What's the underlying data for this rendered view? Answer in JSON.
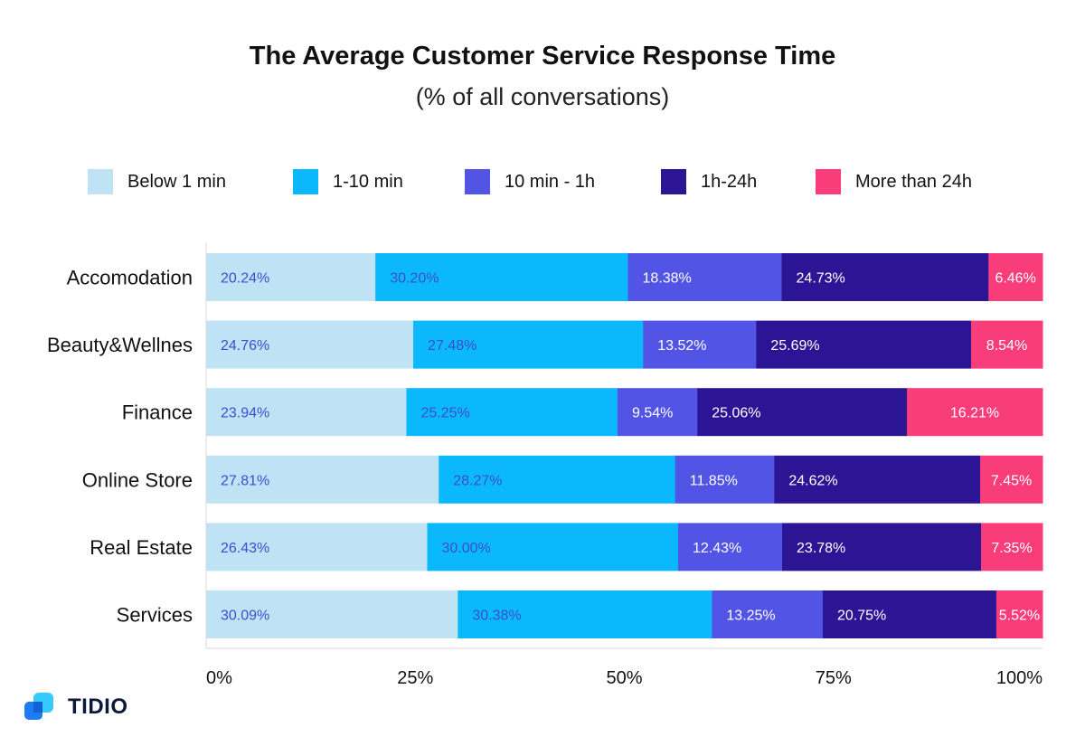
{
  "title": "The Average Customer Service Response Time",
  "subtitle": "(% of all conversations)",
  "brand": {
    "name": "TIDIO",
    "icon": "tidio-logo-icon"
  },
  "chart_data": {
    "type": "bar",
    "orientation": "horizontal",
    "stacked": true,
    "title": "The Average Customer Service Response Time",
    "subtitle": "(% of all conversations)",
    "categories": [
      "Accomodation",
      "Beauty&Wellnes",
      "Finance",
      "Online Store",
      "Real Estate",
      "Services"
    ],
    "series": [
      {
        "name": "Below 1 min",
        "color": "#bfe3f4",
        "label_color": "#3a4fd0",
        "values": [
          20.24,
          24.76,
          23.94,
          27.81,
          26.43,
          30.09
        ],
        "labels": [
          "20.24%",
          "24.76%",
          "23.94%",
          "27.81%",
          "26.43%",
          "30.09%"
        ]
      },
      {
        "name": "1-10 min",
        "color": "#0ab8fb",
        "label_color": "#3a4fd0",
        "values": [
          30.2,
          27.48,
          25.25,
          28.27,
          30.0,
          30.38
        ],
        "labels": [
          "30.20%",
          "27.48%",
          "25.25%",
          "28.27%",
          "30.00%",
          "30.38%"
        ]
      },
      {
        "name": "10 min - 1h",
        "color": "#5254e6",
        "label_color": "#ffffff",
        "values": [
          18.38,
          13.52,
          9.54,
          11.85,
          12.43,
          13.25
        ],
        "labels": [
          "18.38%",
          "13.52%",
          "9.54%",
          "11.85%",
          "12.43%",
          "13.25%"
        ]
      },
      {
        "name": "1h-24h",
        "color": "#2c1594",
        "label_color": "#ffffff",
        "values": [
          24.73,
          25.69,
          25.06,
          24.62,
          23.78,
          20.75
        ],
        "labels": [
          "24.73%",
          "25.69%",
          "25.06%",
          "24.62%",
          "23.78%",
          "20.75%"
        ]
      },
      {
        "name": "More than 24h",
        "color": "#f93c7a",
        "label_color": "#ffffff",
        "values": [
          6.46,
          8.54,
          16.21,
          7.45,
          7.35,
          5.52
        ],
        "labels": [
          "6.46%",
          "8.54%",
          "16.21%",
          "7.45%",
          "7.35%",
          "5.52%"
        ]
      }
    ],
    "xlim": [
      0,
      100
    ],
    "xticks": [
      "0%",
      "25%",
      "50%",
      "75%",
      "100%"
    ],
    "xlabel": "",
    "ylabel": "",
    "grid": false,
    "legend": "top"
  }
}
